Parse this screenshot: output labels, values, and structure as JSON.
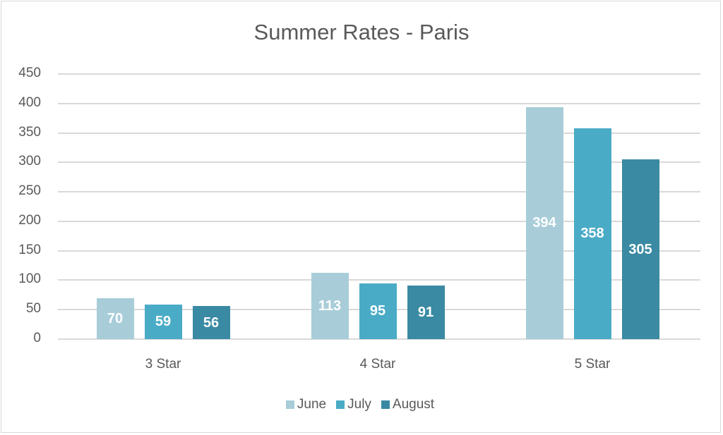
{
  "chart_data": {
    "type": "bar",
    "title": "Summer Rates - Paris",
    "categories": [
      "3 Star",
      "4 Star",
      "5 Star"
    ],
    "series": [
      {
        "name": "June",
        "values": [
          70,
          113,
          394
        ],
        "color": "#a8cdd9"
      },
      {
        "name": "July",
        "values": [
          59,
          95,
          358
        ],
        "color": "#4aabc6"
      },
      {
        "name": "August",
        "values": [
          56,
          91,
          305
        ],
        "color": "#3a8aa3"
      }
    ],
    "xlabel": "",
    "ylabel": "",
    "ylim": [
      0,
      450
    ],
    "yticks": [
      "450",
      "400",
      "350",
      "300",
      "250",
      "200",
      "150",
      "100",
      "50",
      "0"
    ],
    "grid": true,
    "legend_position": "bottom",
    "data_labels": true
  }
}
